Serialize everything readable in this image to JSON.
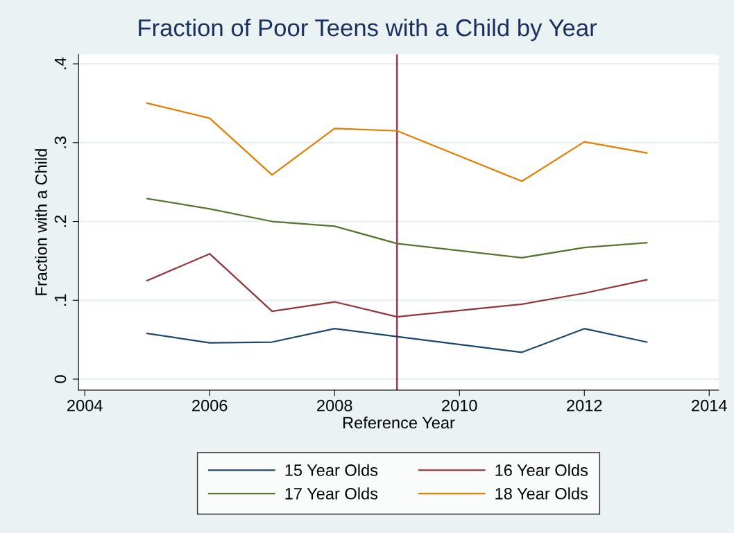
{
  "chart_data": {
    "type": "line",
    "title": "Fraction of Poor Teens with a Child by Year",
    "xlabel": "Reference Year",
    "ylabel": "Fraction with a Child",
    "x": [
      2005,
      2006,
      2007,
      2008,
      2009,
      2011,
      2012,
      2013
    ],
    "series": [
      {
        "name": "15 Year Olds",
        "color": "#1a476f",
        "values": [
          0.058,
          0.046,
          0.047,
          0.064,
          0.054,
          0.034,
          0.064,
          0.047
        ]
      },
      {
        "name": "16 Year Olds",
        "color": "#90353b",
        "values": [
          0.125,
          0.159,
          0.086,
          0.098,
          0.079,
          0.095,
          0.109,
          0.126
        ]
      },
      {
        "name": "17 Year Olds",
        "color": "#55752f",
        "values": [
          0.229,
          0.216,
          0.2,
          0.194,
          0.172,
          0.154,
          0.167,
          0.173
        ]
      },
      {
        "name": "18 Year Olds",
        "color": "#e37e00",
        "values": [
          0.35,
          0.331,
          0.259,
          0.318,
          0.315,
          0.251,
          0.301,
          0.287
        ]
      }
    ],
    "xlim": [
      2003.9,
      2014.15
    ],
    "xticks": [
      2004,
      2006,
      2008,
      2010,
      2012,
      2014
    ],
    "ylim": [
      -0.014,
      0.412
    ],
    "yticks": [
      0,
      {
        "value": 0.1,
        "label": ".1"
      },
      {
        "value": 0.2,
        "label": ".2"
      },
      {
        "value": 0.3,
        "label": ".3"
      },
      {
        "value": 0.4,
        "label": ".4"
      }
    ],
    "ref_lines": [
      {
        "axis": "x",
        "value": 2009,
        "color": "#b0163a"
      }
    ],
    "grid": "y",
    "legend": "bottom",
    "marker": "none",
    "line_style": "solid"
  }
}
